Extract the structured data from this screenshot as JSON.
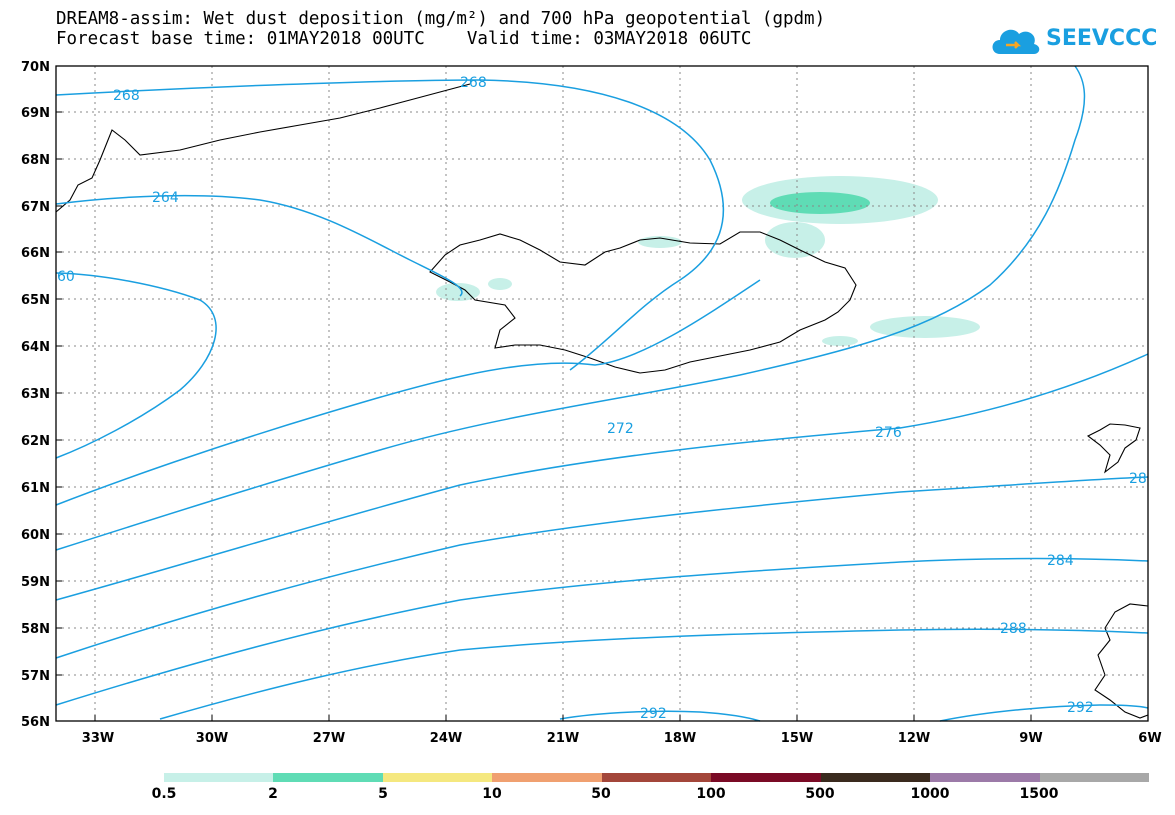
{
  "header": {
    "title_line1": "DREAM8-assim: Wet dust deposition (mg/m²) and 700 hPa geopotential (gpdm)",
    "title_line2": "Forecast base time: 01MAY2018 00UTC    Valid time: 03MAY2018 06UTC"
  },
  "logo": {
    "text": "SEEVCCC",
    "icon": "cloud-icon",
    "color": "#1a9fe0"
  },
  "map": {
    "lat_labels": [
      "70N",
      "69N",
      "68N",
      "67N",
      "66N",
      "65N",
      "64N",
      "63N",
      "62N",
      "61N",
      "60N",
      "59N",
      "58N",
      "57N",
      "56N"
    ],
    "lon_labels": [
      "33W",
      "30W",
      "27W",
      "24W",
      "21W",
      "18W",
      "15W",
      "12W",
      "9W",
      "6W"
    ],
    "contour_labels": [
      "268",
      "268",
      "264",
      "60",
      "272",
      "276",
      "28",
      "284",
      "288",
      "292",
      "292"
    ],
    "contour_color": "#1a9fe0"
  },
  "legend": {
    "colors": [
      "#c7f0e8",
      "#5fdcb5",
      "#f5e87f",
      "#f0a070",
      "#a3463a",
      "#7a0a25",
      "#3a2a1e",
      "#9c7aa8",
      "#a8a8a8"
    ],
    "labels": [
      "0.5",
      "2",
      "5",
      "10",
      "50",
      "100",
      "500",
      "1000",
      "1500"
    ]
  }
}
